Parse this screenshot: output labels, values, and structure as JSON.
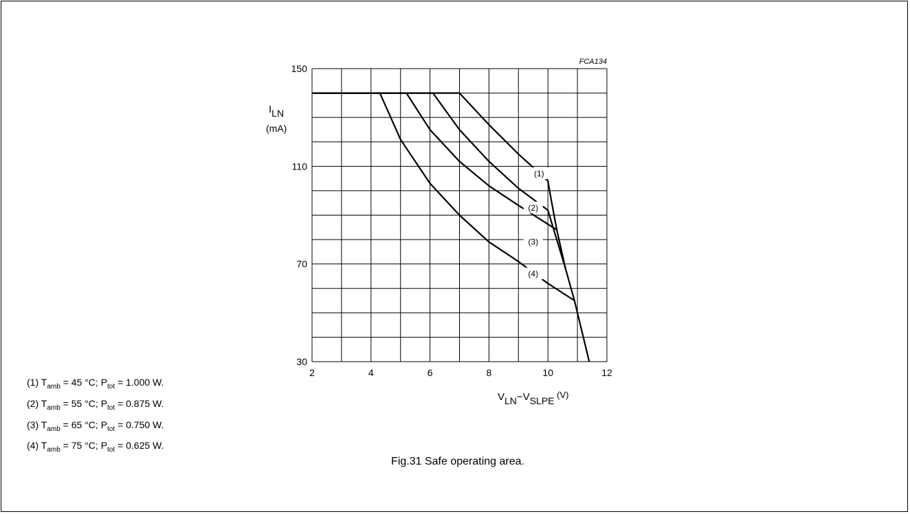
{
  "figure_code": "FCA134",
  "caption": "Fig.31  Safe operating area.",
  "legend": [
    {
      "num": "(1)",
      "sym": "T",
      "sub": "amb",
      "val": " = 45 °C; ",
      "psym": "P",
      "psub": "tot",
      "pval": " = 1.000 W."
    },
    {
      "num": "(2)",
      "sym": "T",
      "sub": "amb",
      "val": " = 55 °C; ",
      "psym": "P",
      "psub": "tot",
      "pval": " = 0.875 W."
    },
    {
      "num": "(3)",
      "sym": "T",
      "sub": "amb",
      "val": " = 65 °C; ",
      "psym": "P",
      "psub": "tot",
      "pval": " = 0.750 W."
    },
    {
      "num": "(4)",
      "sym": "T",
      "sub": "amb",
      "val": " = 75 °C; ",
      "psym": "P",
      "psub": "tot",
      "pval": " = 0.625 W."
    }
  ],
  "chart_data": {
    "type": "line",
    "xlim": [
      2,
      12
    ],
    "ylim": [
      30,
      150
    ],
    "x_ticks": [
      2,
      4,
      6,
      8,
      10,
      12
    ],
    "y_ticks": [
      30,
      70,
      110,
      150
    ],
    "grid": true,
    "ylabel": {
      "main": "I",
      "sub": "LN",
      "unit": "(mA)"
    },
    "xlabel": {
      "a": "V",
      "a_sub": "LN",
      "dash": "−",
      "b": "V",
      "b_sub": "SLPE",
      "unit": " (V)"
    },
    "series": [
      {
        "name": "(1)",
        "points": [
          [
            2,
            140
          ],
          [
            7.0,
            140
          ],
          [
            8.0,
            127
          ],
          [
            9.0,
            115
          ],
          [
            10.0,
            104
          ],
          [
            10.1,
            97
          ]
        ]
      },
      {
        "name": "(2)",
        "points": [
          [
            2,
            140
          ],
          [
            5.2,
            140
          ],
          [
            6.0,
            125
          ],
          [
            7.0,
            112
          ],
          [
            8.0,
            102
          ],
          [
            9.0,
            94
          ],
          [
            10.3,
            84
          ]
        ]
      },
      {
        "name": "(3)",
        "points": [
          [
            2,
            140
          ],
          [
            6.1,
            140
          ],
          [
            7.0,
            125
          ],
          [
            8.0,
            112
          ],
          [
            9.0,
            101
          ],
          [
            10.0,
            92
          ],
          [
            10.6,
            68
          ]
        ]
      },
      {
        "name": "(4)",
        "points": [
          [
            2,
            140
          ],
          [
            4.3,
            140
          ],
          [
            5.0,
            121
          ],
          [
            6.0,
            103
          ],
          [
            7.0,
            90
          ],
          [
            8.0,
            79
          ],
          [
            9.0,
            71
          ],
          [
            10.0,
            62
          ],
          [
            10.9,
            55
          ]
        ]
      },
      {
        "name": "",
        "points": [
          [
            10.1,
            97
          ],
          [
            10.3,
            84
          ],
          [
            10.6,
            68
          ],
          [
            10.9,
            55
          ],
          [
            11.4,
            30
          ]
        ]
      }
    ],
    "curve_labels": [
      "(1)",
      "(2)",
      "(3)",
      "(4)"
    ]
  }
}
